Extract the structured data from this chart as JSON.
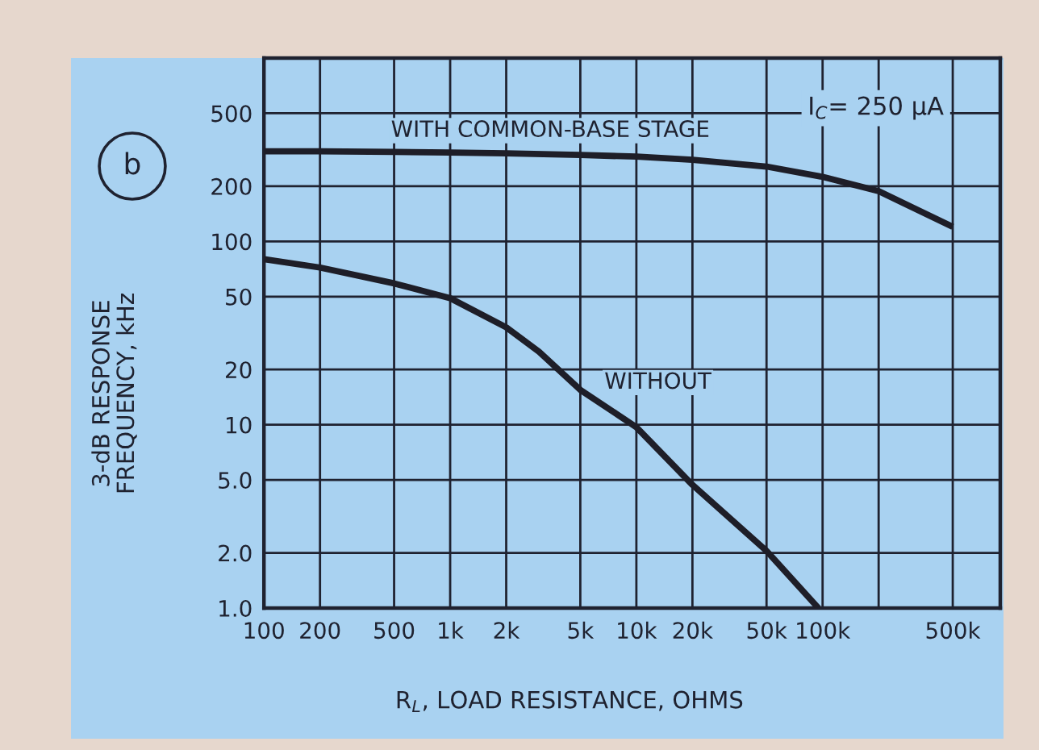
{
  "chart_data": {
    "type": "line",
    "xlabel": "R$_{L}$, LOAD RESISTANCE, OHMS",
    "ylabel": "3-dB RESPONSE\nFREQUENCY, kHz",
    "log": "xy",
    "grid": true,
    "xlim": [
      100,
      900000
    ],
    "ylim": [
      1,
      1000
    ],
    "xticks": [
      100,
      200,
      500,
      {
        "value": 1000,
        "label": "1k"
      },
      {
        "value": 2000,
        "label": "2k"
      },
      {
        "value": 5000,
        "label": "5k"
      },
      {
        "value": 10000,
        "label": "10k"
      },
      {
        "value": 20000,
        "label": "20k"
      },
      {
        "value": 50000,
        "label": "50k"
      },
      {
        "value": 100000,
        "label": "100k"
      },
      {
        "value": 200000,
        "label": null
      },
      {
        "value": 500000,
        "label": "500k"
      }
    ],
    "yticks": [
      {
        "value": 1,
        "label": "1.0"
      },
      {
        "value": 2,
        "label": "2.0"
      },
      {
        "value": 5,
        "label": "5.0"
      },
      10,
      20,
      50,
      100,
      200,
      500
    ],
    "annotations": [
      "b",
      "I$_{C}$= 250 μA"
    ],
    "series": [
      {
        "name": "WITH COMMON-BASE STAGE",
        "color": "#1e1e28",
        "x": [
          100,
          200,
          500,
          1000,
          2000,
          5000,
          10000,
          20000,
          50000,
          100000,
          200000,
          500000
        ],
        "values": [
          310,
          310,
          308,
          305,
          302,
          296,
          290,
          279,
          256,
          225,
          188,
          120
        ]
      },
      {
        "name": "WITHOUT",
        "color": "#1e1e28",
        "x": [
          100,
          200,
          500,
          1000,
          2000,
          3000,
          5000,
          10000,
          20000,
          50000,
          95000
        ],
        "values": [
          80,
          72,
          59,
          49,
          34,
          25,
          15.5,
          9.7,
          4.7,
          2.05,
          1.0
        ]
      }
    ]
  }
}
